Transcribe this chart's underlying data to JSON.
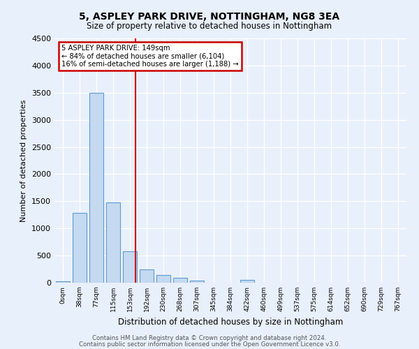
{
  "title1": "5, ASPLEY PARK DRIVE, NOTTINGHAM, NG8 3EA",
  "title2": "Size of property relative to detached houses in Nottingham",
  "xlabel": "Distribution of detached houses by size in Nottingham",
  "ylabel": "Number of detached properties",
  "bar_labels": [
    "0sqm",
    "38sqm",
    "77sqm",
    "115sqm",
    "153sqm",
    "192sqm",
    "230sqm",
    "268sqm",
    "307sqm",
    "345sqm",
    "384sqm",
    "422sqm",
    "460sqm",
    "499sqm",
    "537sqm",
    "575sqm",
    "614sqm",
    "652sqm",
    "690sqm",
    "729sqm",
    "767sqm"
  ],
  "bar_values": [
    30,
    1280,
    3500,
    1480,
    580,
    250,
    140,
    90,
    40,
    5,
    5,
    50,
    0,
    0,
    0,
    0,
    0,
    0,
    0,
    0,
    0
  ],
  "bar_color": "#c5d9f0",
  "bar_edge_color": "#5b9bd5",
  "red_line_index": 4,
  "annotation_title": "5 ASPLEY PARK DRIVE: 149sqm",
  "annotation_line2": "← 84% of detached houses are smaller (6,104)",
  "annotation_line3": "16% of semi-detached houses are larger (1,188) →",
  "annotation_box_color": "#cc0000",
  "ylim": [
    0,
    4500
  ],
  "yticks": [
    0,
    500,
    1000,
    1500,
    2000,
    2500,
    3000,
    3500,
    4000,
    4500
  ],
  "footer1": "Contains HM Land Registry data © Crown copyright and database right 2024.",
  "footer2": "Contains public sector information licensed under the Open Government Licence v3.0.",
  "bg_color": "#e8f0fb",
  "plot_bg_color": "#e8f0fb",
  "grid_color": "#ffffff"
}
